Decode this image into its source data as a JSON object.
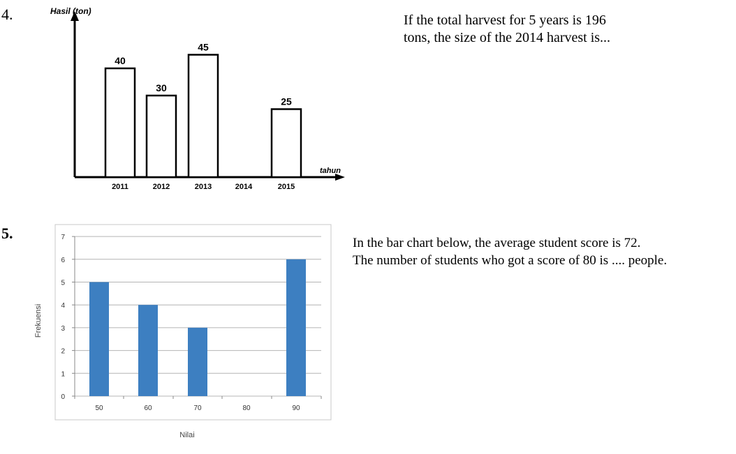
{
  "questions": [
    {
      "number": "4.",
      "text_lines": [
        "If the total harvest for 5 years is 196",
        "tons, the size of the 2014 harvest is..."
      ]
    },
    {
      "number": "5.",
      "text_lines": [
        "In the bar chart below, the average student score is 72.",
        "The number of students who got a score of 80 is .... people."
      ]
    }
  ],
  "chart_data": [
    {
      "type": "bar",
      "ylabel": "Hasil (ton)",
      "xlabel": "tahun",
      "categories": [
        "2011",
        "2012",
        "2013",
        "2014",
        "2015"
      ],
      "values": [
        40,
        30,
        45,
        null,
        25
      ],
      "data_labels": [
        "40",
        "30",
        "45",
        "",
        "25"
      ],
      "ylim": [
        0,
        50
      ],
      "grid": false,
      "bar_fill": "#ffffff",
      "bar_stroke": "#000000"
    },
    {
      "type": "bar",
      "ylabel": "Frekuensi",
      "xlabel": "Nilai",
      "categories": [
        "50",
        "60",
        "70",
        "80",
        "90"
      ],
      "values": [
        5,
        4,
        3,
        null,
        6
      ],
      "ylim": [
        0,
        7
      ],
      "yticks": [
        "0",
        "1",
        "2",
        "3",
        "4",
        "5",
        "6",
        "7"
      ],
      "grid": true,
      "bar_color": "#3d7fc1"
    }
  ]
}
